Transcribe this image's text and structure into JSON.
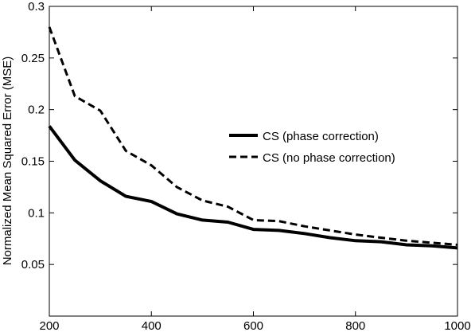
{
  "chart_data": {
    "type": "line",
    "title": "",
    "xlabel": "",
    "ylabel": "Normalized Mean Squared Error (MSE)",
    "xlim": [
      200,
      1000
    ],
    "ylim": [
      0,
      0.3
    ],
    "xticks": [
      200,
      400,
      600,
      800,
      1000
    ],
    "yticks": [
      0.05,
      0.1,
      0.15,
      0.2,
      0.25,
      0.3
    ],
    "xtick_labels": [
      "200",
      "400",
      "600",
      "800",
      "1000"
    ],
    "ytick_labels": [
      "0.05",
      "0.1",
      "0.15",
      "0.2",
      "0.25",
      "0.3"
    ],
    "grid": false,
    "legend_position": "center-right",
    "series": [
      {
        "name": "CS (phase correction)",
        "style": "solid",
        "color": "#000000",
        "x": [
          200,
          250,
          300,
          350,
          400,
          450,
          500,
          550,
          600,
          650,
          700,
          750,
          800,
          850,
          900,
          950,
          1000
        ],
        "y": [
          0.184,
          0.151,
          0.131,
          0.116,
          0.111,
          0.099,
          0.093,
          0.091,
          0.084,
          0.083,
          0.08,
          0.076,
          0.073,
          0.072,
          0.069,
          0.068,
          0.066
        ]
      },
      {
        "name": "CS (no phase correction)",
        "style": "dashed",
        "color": "#000000",
        "x": [
          200,
          250,
          300,
          350,
          400,
          450,
          500,
          550,
          600,
          650,
          700,
          750,
          800,
          850,
          900,
          950,
          1000
        ],
        "y": [
          0.28,
          0.213,
          0.199,
          0.16,
          0.146,
          0.125,
          0.112,
          0.106,
          0.093,
          0.092,
          0.087,
          0.083,
          0.079,
          0.076,
          0.073,
          0.071,
          0.069
        ]
      }
    ]
  }
}
